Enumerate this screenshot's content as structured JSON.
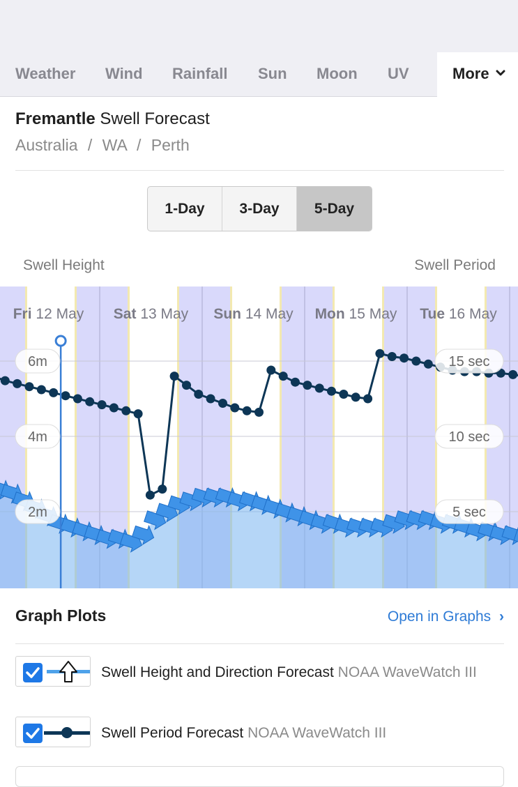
{
  "tabs": [
    {
      "label": "Weather"
    },
    {
      "label": "Wind"
    },
    {
      "label": "Rainfall"
    },
    {
      "label": "Sun"
    },
    {
      "label": "Moon"
    },
    {
      "label": "UV"
    }
  ],
  "more_label": "More",
  "header": {
    "location": "Fremantle",
    "title_suffix": "Swell Forecast",
    "breadcrumb": [
      "Australia",
      "WA",
      "Perth"
    ],
    "separator": "/"
  },
  "range_buttons": [
    {
      "label": "1-Day",
      "active": false
    },
    {
      "label": "3-Day",
      "active": false
    },
    {
      "label": "5-Day",
      "active": true
    }
  ],
  "chart_labels": {
    "left": "Swell Height",
    "right": "Swell Period"
  },
  "chart_data": {
    "type": "line",
    "days": [
      {
        "dow": "Fri",
        "date": "12 May"
      },
      {
        "dow": "Sat",
        "date": "13 May"
      },
      {
        "dow": "Sun",
        "date": "14 May"
      },
      {
        "dow": "Mon",
        "date": "15 May"
      },
      {
        "dow": "Tue",
        "date": "16 May"
      }
    ],
    "left_axis": {
      "ticks": [
        "6m",
        "4m",
        "2m"
      ],
      "values": [
        6,
        4,
        2
      ],
      "range": [
        0,
        8
      ]
    },
    "right_axis": {
      "ticks": [
        "15 sec",
        "10 sec",
        "5 sec"
      ],
      "values": [
        15,
        10,
        5
      ],
      "range": [
        0,
        20
      ]
    },
    "period_series": [
      14.0,
      13.7,
      13.5,
      13.3,
      13.1,
      12.9,
      12.7,
      12.5,
      12.3,
      12.1,
      11.9,
      11.7,
      11.5,
      6.1,
      6.5,
      14.0,
      13.4,
      12.8,
      12.5,
      12.2,
      11.9,
      11.7,
      11.6,
      14.4,
      14.0,
      13.6,
      13.4,
      13.2,
      13.0,
      12.8,
      12.6,
      12.5,
      15.5,
      15.3,
      15.2,
      15.0,
      14.8,
      14.6,
      14.4,
      14.3,
      14.3,
      14.2,
      14.2,
      14.1,
      14.0
    ],
    "height_series": [
      2.6,
      2.5,
      2.3,
      2.1,
      1.9,
      1.7,
      1.6,
      1.5,
      1.4,
      1.3,
      1.3,
      1.2,
      1.4,
      1.8,
      2.0,
      2.2,
      2.3,
      2.4,
      2.4,
      2.4,
      2.3,
      2.3,
      2.2,
      2.1,
      2.0,
      1.9,
      1.8,
      1.7,
      1.7,
      1.6,
      1.6,
      1.6,
      1.6,
      1.7,
      1.8,
      1.8,
      1.8,
      1.7,
      1.7,
      1.6,
      1.5,
      1.5,
      1.4,
      1.4,
      1.3
    ],
    "current_time_marker": {
      "day_index": 0,
      "fraction": 0.62
    }
  },
  "graph_plots": {
    "title": "Graph Plots",
    "open_link": "Open in Graphs",
    "items": [
      {
        "name": "Swell Height and Direction Forecast",
        "source": "NOAA WaveWatch III",
        "checked": true
      },
      {
        "name": "Swell Period Forecast",
        "source": "NOAA WaveWatch III",
        "checked": true
      }
    ]
  },
  "colors": {
    "accent": "#2e7bd6",
    "night": "#d9d9fb",
    "day": "#ffffff",
    "period_line": "#0d3656",
    "height_fill": "#a9d1f5"
  }
}
